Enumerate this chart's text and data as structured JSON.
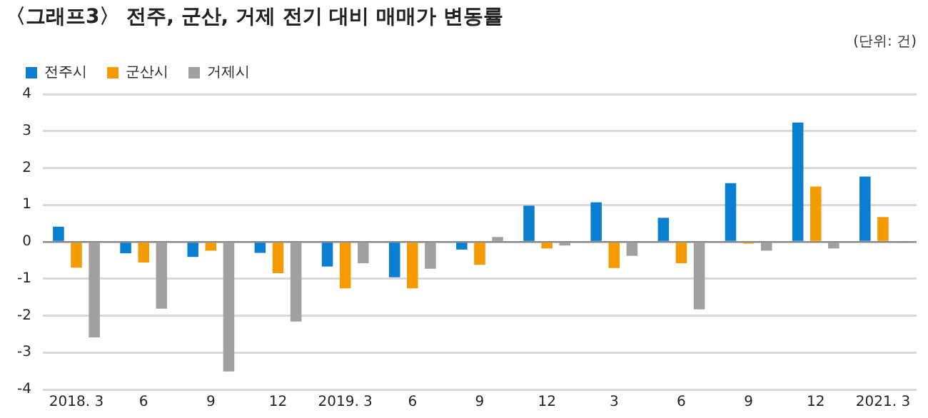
{
  "chart_data": {
    "type": "bar",
    "title": "〈그래프3〉 전주, 군산, 거제 전기 대비 매매가 변동률",
    "subtitle": "(단위: 건)",
    "categories": [
      "2018. 3",
      "6",
      "9",
      "12",
      "2019. 3",
      "6",
      "9",
      "12",
      "3",
      "6",
      "9",
      "12",
      "2021. 3"
    ],
    "series": [
      {
        "name": "전주시",
        "color": "#0a7fd1",
        "values": [
          0.41,
          -0.31,
          -0.41,
          -0.3,
          -0.67,
          -0.96,
          -0.21,
          0.98,
          1.07,
          0.65,
          1.59,
          3.23,
          1.77
        ]
      },
      {
        "name": "군산시",
        "color": "#f59a00",
        "values": [
          -0.7,
          -0.56,
          -0.24,
          -0.85,
          -1.26,
          -1.26,
          -0.62,
          -0.18,
          -0.71,
          -0.58,
          -0.05,
          1.5,
          0.67
        ]
      },
      {
        "name": "거제시",
        "color": "#a0a0a0",
        "values": [
          -2.59,
          -1.81,
          -3.51,
          -2.16,
          -0.58,
          -0.73,
          0.13,
          -0.1,
          -0.38,
          -1.83,
          -0.24,
          -0.18,
          -0.03
        ]
      }
    ],
    "ylim": [
      -4,
      4
    ],
    "yticks": [
      -4,
      -3,
      -2,
      -1,
      0,
      1,
      2,
      3,
      4
    ],
    "grid": "y",
    "legend": "top left"
  }
}
